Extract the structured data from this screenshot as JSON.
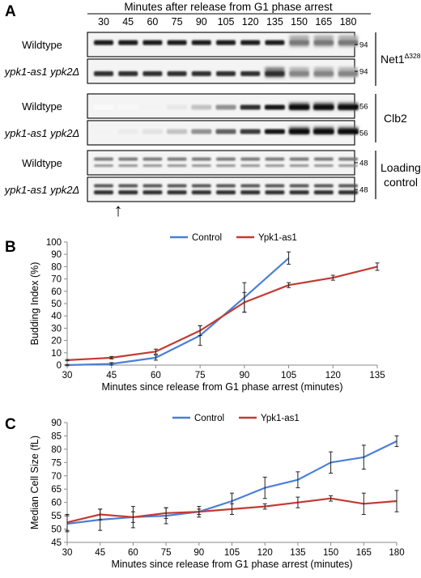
{
  "panelA": {
    "letter": "A",
    "header": "Minutes after release from G1 phase arrest",
    "lanes": [
      "30",
      "45",
      "60",
      "75",
      "90",
      "105",
      "120",
      "135",
      "150",
      "165",
      "180"
    ],
    "rows": [
      {
        "label": "Wildtype",
        "italic": false,
        "marker": "94",
        "kind": "net_wt"
      },
      {
        "label": "ypk1-as1 ypk2Δ",
        "italic": true,
        "marker": "94",
        "kind": "net_mut"
      },
      {
        "label": "Wildtype",
        "italic": false,
        "marker": "56",
        "kind": "clb_wt"
      },
      {
        "label": "ypk1-as1 ypk2Δ",
        "italic": true,
        "marker": "56",
        "kind": "clb_mut"
      },
      {
        "label": "Wildtype",
        "italic": false,
        "marker": "48",
        "kind": "load_wt"
      },
      {
        "label": "ypk1-as1 ypk2Δ",
        "italic": true,
        "marker": "48",
        "kind": "load_mut"
      }
    ],
    "groups": {
      "net": {
        "name": "Net1",
        "superscript": "Δ328"
      },
      "clb": {
        "name": "Clb2"
      },
      "load": {
        "line1": "Loading",
        "line2": "control"
      }
    },
    "arrow": "↑"
  },
  "panelB": {
    "letter": "B",
    "chart_data": {
      "type": "line",
      "xlabel": "Minutes since release from G1 phase arrest (minutes)",
      "ylabel": "Budding Index (%)",
      "x": [
        30,
        45,
        60,
        75,
        90,
        105,
        120,
        135
      ],
      "xlim": [
        30,
        135
      ],
      "ylim": [
        0,
        100
      ],
      "yticks": [
        0,
        10,
        20,
        30,
        40,
        50,
        60,
        70,
        80,
        90,
        100
      ],
      "legend_position": "top",
      "series": [
        {
          "name": "Control",
          "color": "#4a7fd8",
          "x": [
            30,
            45,
            60,
            75,
            90,
            105
          ],
          "values": [
            0,
            1,
            6,
            24,
            55,
            87
          ],
          "err": [
            0.5,
            1,
            2,
            8,
            12,
            5
          ]
        },
        {
          "name": "Ypk1-as1",
          "color": "#c23b32",
          "x": [
            30,
            45,
            60,
            75,
            90,
            105,
            120,
            135
          ],
          "values": [
            4,
            6,
            11,
            28,
            51,
            65,
            71,
            80
          ],
          "err": [
            0.5,
            1,
            2,
            4,
            8,
            2,
            2,
            3
          ]
        }
      ]
    }
  },
  "panelC": {
    "letter": "C",
    "chart_data": {
      "type": "line",
      "xlabel": "Minutes since release from G1 phase arrest (minutes)",
      "ylabel": "Median Cell Size (fL)",
      "x": [
        30,
        45,
        60,
        75,
        90,
        105,
        120,
        135,
        150,
        165,
        180
      ],
      "xlim": [
        30,
        180
      ],
      "ylim": [
        45,
        90
      ],
      "yticks": [
        45,
        50,
        55,
        60,
        65,
        70,
        75,
        80,
        85,
        90
      ],
      "legend_position": "top",
      "series": [
        {
          "name": "Control",
          "color": "#4a7fd8",
          "values": [
            52,
            53.5,
            54.5,
            55,
            56.5,
            60.5,
            65.5,
            68.5,
            75,
            77,
            83
          ],
          "err": [
            3,
            4,
            4,
            3,
            2,
            3,
            4,
            3,
            4,
            4.5,
            2
          ]
        },
        {
          "name": "Ypk1-as1",
          "color": "#c23b32",
          "values": [
            52.5,
            55.5,
            54.5,
            56,
            56.5,
            57.5,
            58.5,
            60,
            61.5,
            59.5,
            60.5
          ],
          "err": [
            3,
            2,
            2,
            2,
            1,
            2,
            1,
            2,
            1,
            4,
            4
          ]
        }
      ]
    }
  }
}
